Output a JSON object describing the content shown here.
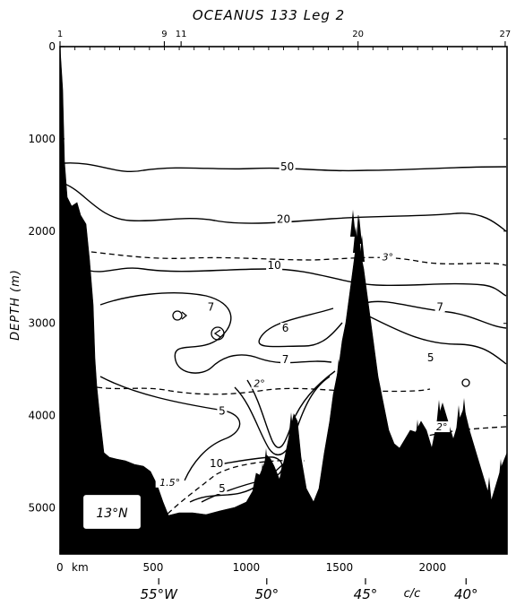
{
  "figure": {
    "title": "OCEANUS 133  Leg 2",
    "y_axis_label": "DEPTH (m)",
    "x_unit_label": "km",
    "latitude_box": "13°N",
    "cc_label": "c/c"
  },
  "chart_data": {
    "type": "contour-section",
    "x_axis": {
      "unit": "km",
      "range": [
        0,
        2400
      ],
      "ticks": [
        0,
        500,
        1000,
        1500,
        2000
      ],
      "tick_labels": [
        "0",
        "500",
        "1000",
        "1500",
        "2000"
      ]
    },
    "y_axis": {
      "unit": "m",
      "range": [
        0,
        5500
      ],
      "inverted": true,
      "ticks": [
        0,
        1000,
        2000,
        3000,
        4000,
        5000
      ],
      "tick_labels": [
        "0",
        "1000",
        "2000",
        "3000",
        "4000",
        "5000"
      ]
    },
    "stations": [
      {
        "label": "1",
        "km": 0
      },
      {
        "label": "9",
        "km": 560
      },
      {
        "label": "11",
        "km": 650
      },
      {
        "label": "20",
        "km": 1600
      },
      {
        "label": "27",
        "km": 2390
      }
    ],
    "longitudes": [
      {
        "label": "55°W",
        "km": 530
      },
      {
        "label": "50°",
        "km": 1110
      },
      {
        "label": "45°",
        "km": 1640
      },
      {
        "label": "40°",
        "km": 2180
      }
    ],
    "contour_labels": [
      {
        "text": "50",
        "km": 1220,
        "depth": 1330,
        "style": "solid"
      },
      {
        "text": "20",
        "km": 1200,
        "depth": 1900,
        "style": "solid"
      },
      {
        "text": "3°",
        "km": 1760,
        "depth": 2310,
        "style": "dashed"
      },
      {
        "text": "10",
        "km": 1150,
        "depth": 2400,
        "style": "solid"
      },
      {
        "text": "7",
        "km": 810,
        "depth": 2850,
        "style": "solid"
      },
      {
        "text": "7",
        "km": 2040,
        "depth": 2850,
        "style": "solid"
      },
      {
        "text": "6",
        "km": 1210,
        "depth": 3080,
        "style": "solid"
      },
      {
        "text": "5",
        "km": 1990,
        "depth": 3400,
        "style": "solid"
      },
      {
        "text": "7",
        "km": 1210,
        "depth": 3420,
        "style": "solid"
      },
      {
        "text": "2°",
        "km": 1070,
        "depth": 3680,
        "style": "dashed"
      },
      {
        "text": "5",
        "km": 870,
        "depth": 3980,
        "style": "solid"
      },
      {
        "text": "2°",
        "km": 2050,
        "depth": 4150,
        "style": "dashed"
      },
      {
        "text": "10",
        "km": 840,
        "depth": 4550,
        "style": "solid"
      },
      {
        "text": "5",
        "km": 870,
        "depth": 4820,
        "style": "solid"
      },
      {
        "text": "1.5°",
        "km": 590,
        "depth": 4750,
        "style": "dashed"
      }
    ]
  }
}
